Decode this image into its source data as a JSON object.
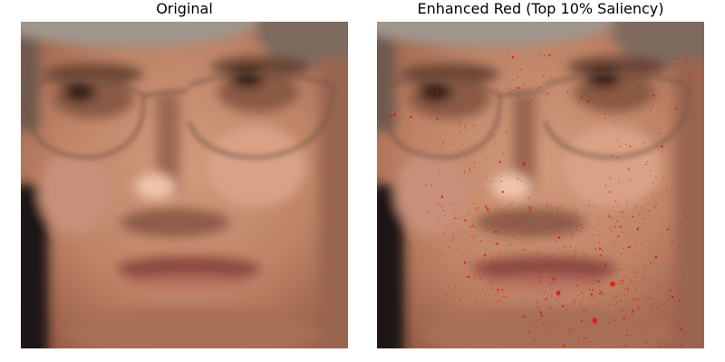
{
  "panels": [
    {
      "title": "Original",
      "image_description": "blurry close-up of an older man's face wearing glasses"
    },
    {
      "title": "Enhanced Red (Top 10% Saliency)",
      "image_description": "same face with scattered red speckles highlighting salient pixels"
    }
  ],
  "colors": {
    "skin": "#c48a6c",
    "skin_light": "#d9a58a",
    "skin_shadow": "#8f5a44",
    "eye_dark": "#3a2418",
    "lips": "#8c4a40",
    "hair_grey": "#9b9188",
    "background_dark": "#1e1616",
    "highlight_red": "#e01010"
  }
}
